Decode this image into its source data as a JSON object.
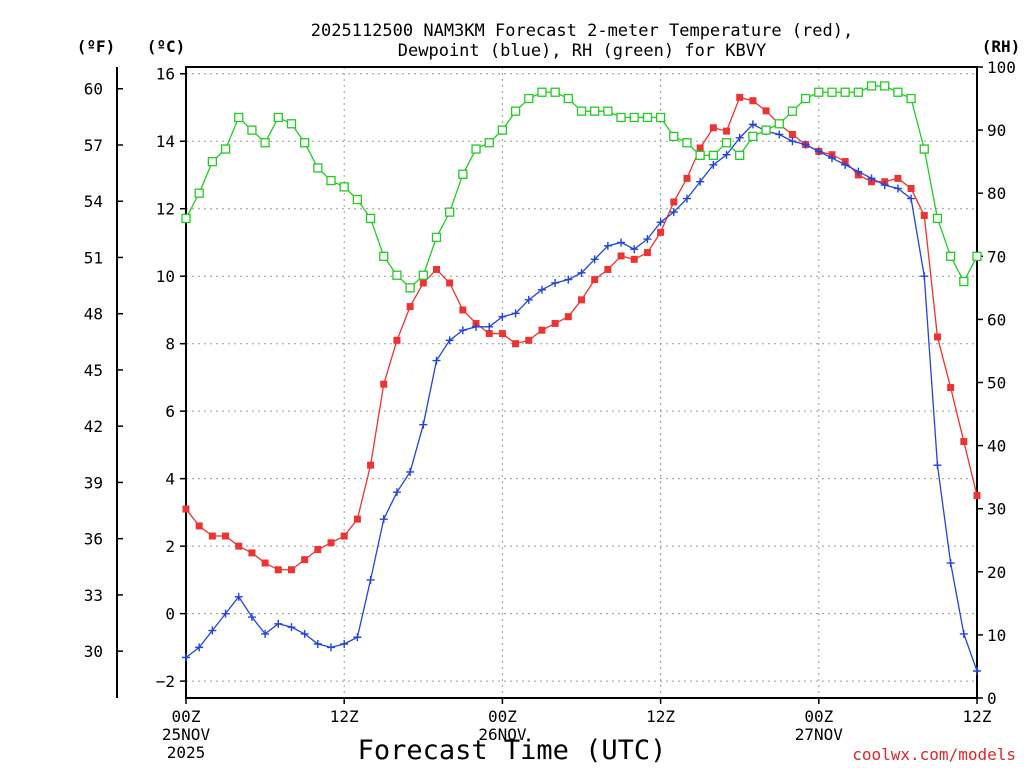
{
  "chart_data": {
    "type": "line",
    "title_line1": "2025112500 NAM3KM Forecast 2-meter Temperature (red),",
    "title_line2": "Dewpoint (blue), RH (green) for KBVY",
    "xlabel": "Forecast Time (UTC)",
    "credit": "coolwx.com/models",
    "units": {
      "f": "(ºF)",
      "c": "(ºC)",
      "rh": "(RH)"
    },
    "x_range_hours": [
      0,
      60
    ],
    "ylim_c": [
      -2.5,
      16.2
    ],
    "ylim_rh": [
      0,
      100
    ],
    "x_ticks": [
      {
        "hour": 0,
        "lines": [
          "00Z",
          "25NOV",
          "2025"
        ]
      },
      {
        "hour": 12,
        "lines": [
          "12Z"
        ]
      },
      {
        "hour": 24,
        "lines": [
          "00Z",
          "26NOV"
        ]
      },
      {
        "hour": 36,
        "lines": [
          "12Z"
        ]
      },
      {
        "hour": 48,
        "lines": [
          "00Z",
          "27NOV"
        ]
      },
      {
        "hour": 60,
        "lines": [
          "12Z"
        ]
      }
    ],
    "c_ticks": [
      -2,
      0,
      2,
      4,
      6,
      8,
      10,
      12,
      14,
      16
    ],
    "c_tick_labels": [
      "−2",
      "0",
      "2",
      "4",
      "6",
      "8",
      "10",
      "12",
      "14",
      "16"
    ],
    "f_ticks": [
      30,
      33,
      36,
      39,
      42,
      45,
      48,
      51,
      54,
      57,
      60
    ],
    "f_tick_labels": [
      "30",
      "33",
      "36",
      "39",
      "42",
      "45",
      "48",
      "51",
      "54",
      "57",
      "60"
    ],
    "rh_ticks": [
      0,
      10,
      20,
      30,
      40,
      50,
      60,
      70,
      80,
      90,
      100
    ],
    "rh_tick_labels": [
      "0",
      "10",
      "20",
      "30",
      "40",
      "50",
      "60",
      "70",
      "80",
      "90",
      "100"
    ],
    "series": [
      {
        "name": "2-meter Temperature",
        "unit": "C",
        "color": "#ee3333",
        "marker": "filled-square",
        "values": [
          3.1,
          2.6,
          2.3,
          2.3,
          2.0,
          1.8,
          1.5,
          1.3,
          1.3,
          1.6,
          1.9,
          2.1,
          2.3,
          2.8,
          4.4,
          6.8,
          8.1,
          9.1,
          9.8,
          10.2,
          9.8,
          9.0,
          8.6,
          8.3,
          8.3,
          8.0,
          8.1,
          8.4,
          8.6,
          8.8,
          9.3,
          9.9,
          10.2,
          10.6,
          10.5,
          10.7,
          11.3,
          12.2,
          12.9,
          13.8,
          14.4,
          14.3,
          15.3,
          15.2,
          14.9,
          14.5,
          14.2,
          13.9,
          13.7,
          13.6,
          13.4,
          13.0,
          12.8,
          12.8,
          12.9,
          12.6,
          11.8,
          8.2,
          6.7,
          5.1,
          3.5
        ]
      },
      {
        "name": "Dewpoint",
        "unit": "C",
        "color": "#2244dd",
        "marker": "plus",
        "values": [
          -1.3,
          -1.0,
          -0.5,
          0.0,
          0.5,
          -0.1,
          -0.6,
          -0.3,
          -0.4,
          -0.6,
          -0.9,
          -1.0,
          -0.9,
          -0.7,
          1.0,
          2.8,
          3.6,
          4.2,
          5.6,
          7.5,
          8.1,
          8.4,
          8.5,
          8.5,
          8.8,
          8.9,
          9.3,
          9.6,
          9.8,
          9.9,
          10.1,
          10.5,
          10.9,
          11.0,
          10.8,
          11.1,
          11.6,
          11.9,
          12.3,
          12.8,
          13.3,
          13.6,
          14.1,
          14.5,
          14.3,
          14.2,
          14.0,
          13.9,
          13.7,
          13.5,
          13.3,
          13.1,
          12.9,
          12.7,
          12.6,
          12.3,
          10.0,
          4.4,
          1.5,
          -0.6,
          -1.7
        ]
      },
      {
        "name": "RH",
        "unit": "%",
        "color": "#22cc22",
        "marker": "open-square",
        "values": [
          76,
          80,
          85,
          87,
          92,
          90,
          88,
          92,
          91,
          88,
          84,
          82,
          81,
          79,
          76,
          70,
          67,
          65,
          67,
          73,
          77,
          83,
          87,
          88,
          90,
          93,
          95,
          96,
          96,
          95,
          93,
          93,
          93,
          92,
          92,
          92,
          92,
          89,
          88,
          86,
          86,
          88,
          86,
          89,
          90,
          91,
          93,
          95,
          96,
          96,
          96,
          96,
          97,
          97,
          96,
          95,
          87,
          76,
          70,
          66,
          70
        ]
      }
    ]
  }
}
